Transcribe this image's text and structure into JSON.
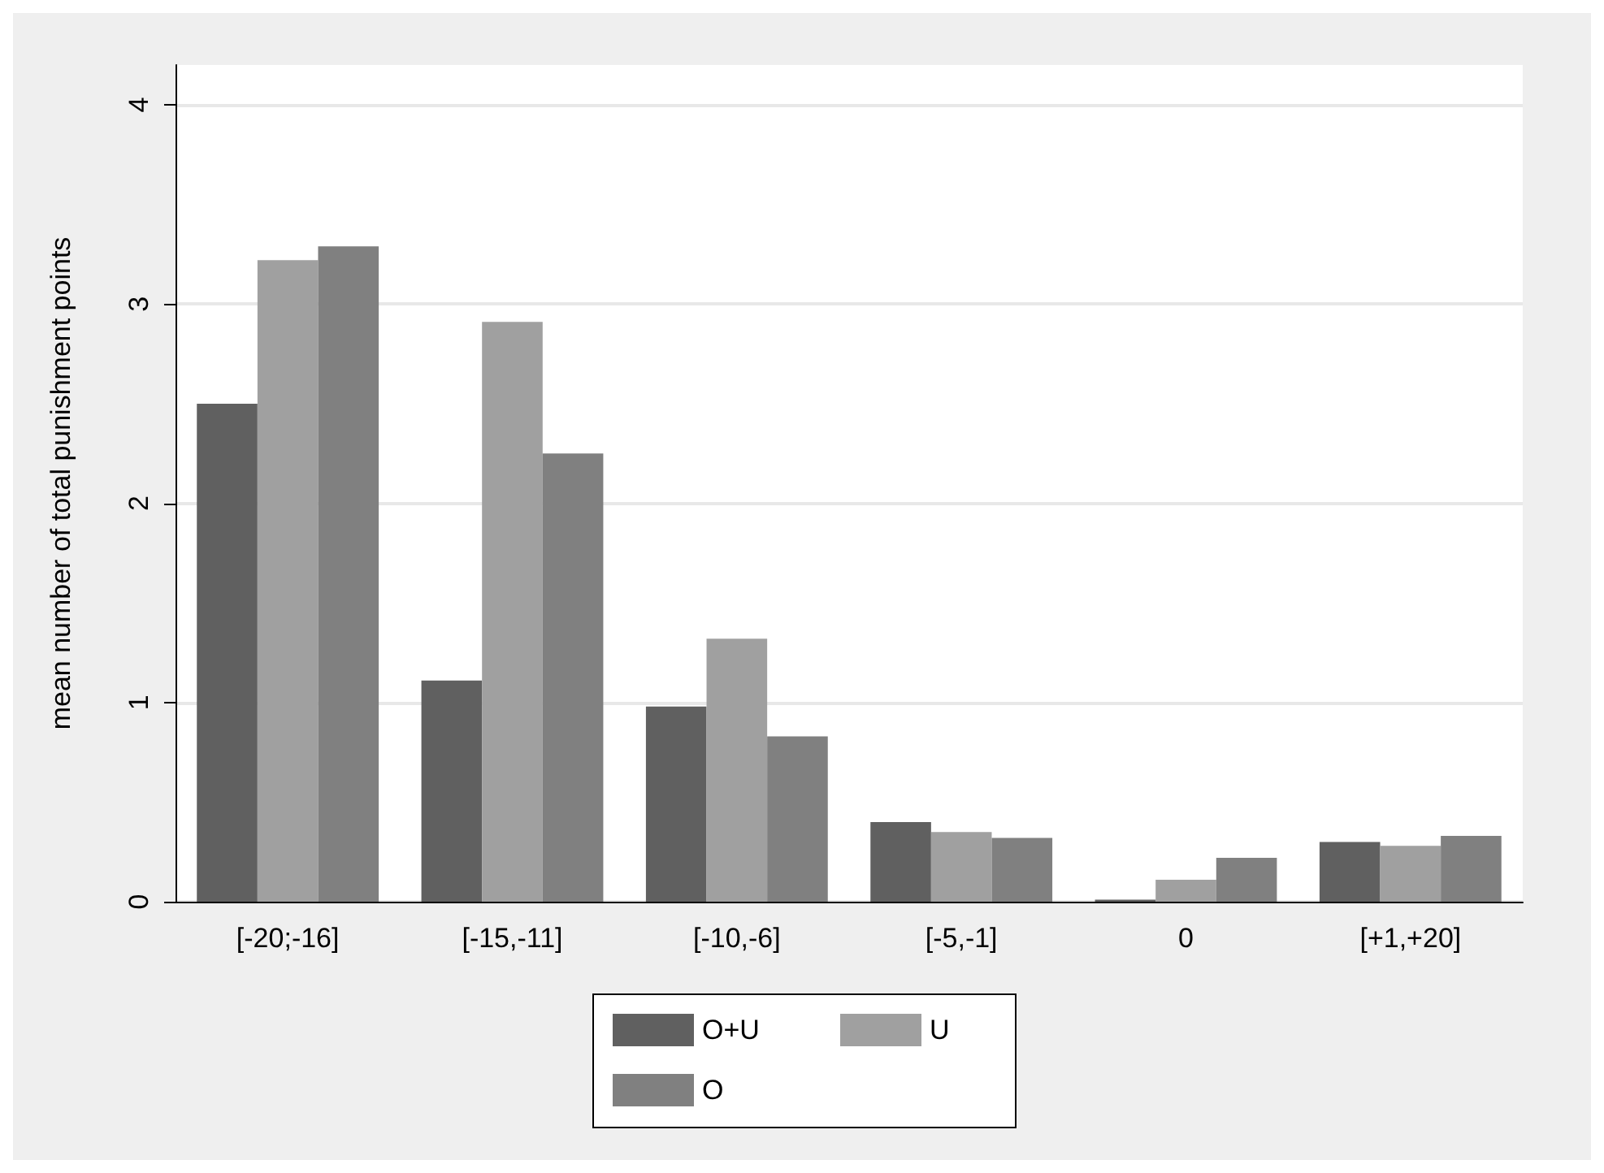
{
  "chart_data": {
    "type": "bar",
    "ylabel": "mean number of total punishment points",
    "categories": [
      "[-20;-16]",
      "[-15,-11]",
      "[-10,-6]",
      "[-5,-1]",
      "0",
      "[+1,+20]"
    ],
    "series": [
      {
        "name": "O+U",
        "color": "#606060",
        "values": [
          2.5,
          1.11,
          0.98,
          0.4,
          0.01,
          0.3
        ]
      },
      {
        "name": "U",
        "color": "#a0a0a0",
        "values": [
          3.22,
          2.91,
          1.32,
          0.35,
          0.11,
          0.28
        ]
      },
      {
        "name": "O",
        "color": "#808080",
        "values": [
          3.29,
          2.25,
          0.83,
          0.32,
          0.22,
          0.33
        ]
      }
    ],
    "ylim": [
      0,
      4.2
    ],
    "yticks": [
      0,
      1,
      2,
      3,
      4
    ],
    "grid": "y",
    "legend": "bottom"
  }
}
